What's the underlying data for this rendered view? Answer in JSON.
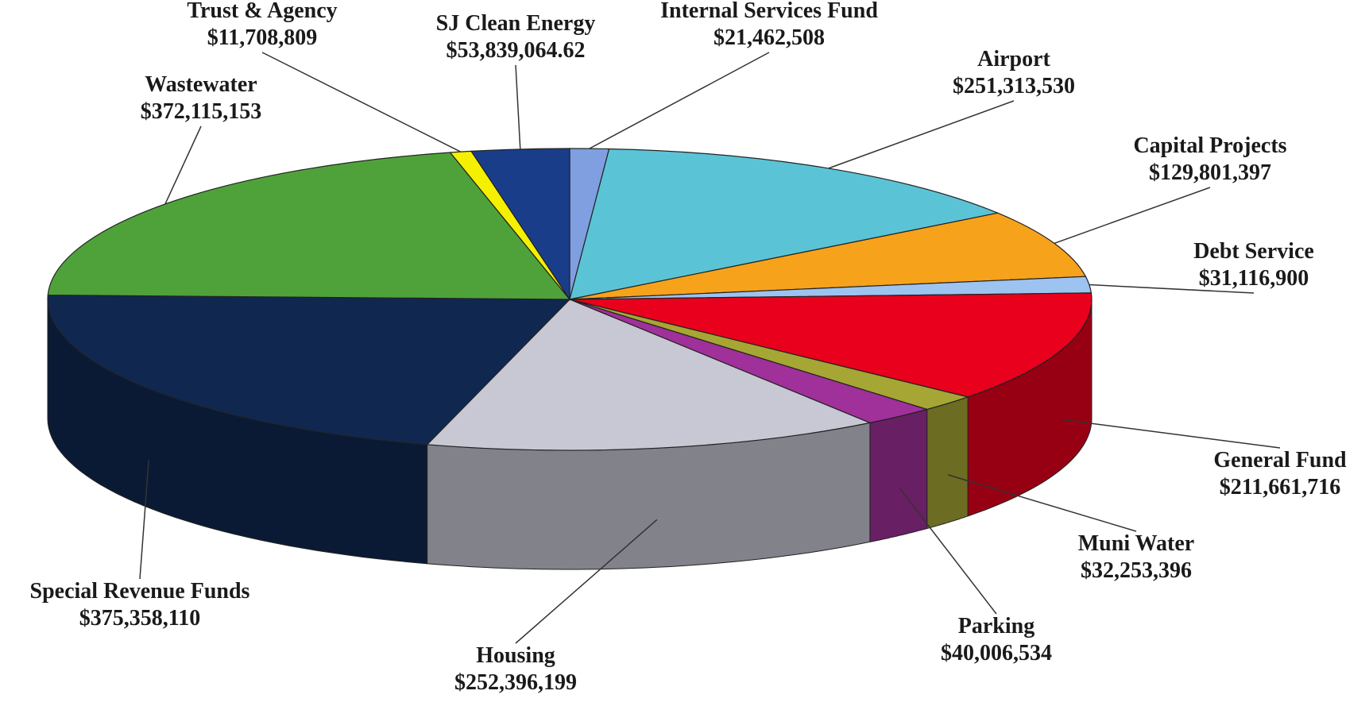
{
  "chart_data": {
    "type": "pie3d",
    "categories": [
      "Internal Services Fund",
      "Airport",
      "Capital Projects",
      "Debt Service",
      "General Fund",
      "Muni Water",
      "Parking",
      "Housing",
      "Special Revenue Funds",
      "Wastewater",
      "Trust & Agency",
      "SJ Clean Energy"
    ],
    "values": [
      21462508,
      251313530,
      129801397,
      31116900,
      211661716,
      32253396,
      40006534,
      252396199,
      375358110,
      372115153,
      11708809,
      53839064.62
    ],
    "value_labels": [
      "$21,462,508",
      "$251,313,530",
      "$129,801,397",
      "$31,116,900",
      "$211,661,716",
      "$32,253,396",
      "$40,006,534",
      "$252,396,199",
      "$375,358,110",
      "$372,115,153",
      "$11,708,809",
      "$53,839,064.62"
    ],
    "colors": [
      "#7f9fe0",
      "#5bc3d6",
      "#f7a21b",
      "#9dc3f0",
      "#e8001c",
      "#a6a634",
      "#a0309a",
      "#c8c8d4",
      "#102850",
      "#4fa23a",
      "#f5f000",
      "#1a3d8a"
    ]
  }
}
